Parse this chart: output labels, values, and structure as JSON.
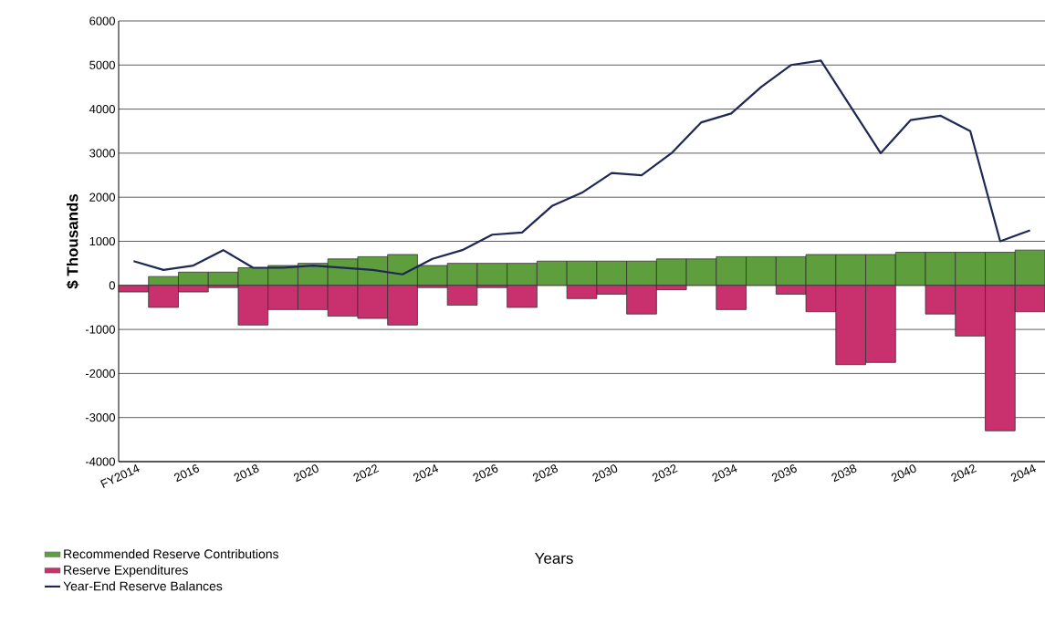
{
  "chart_data": {
    "type": "bar",
    "stacked": true,
    "xlabel": "Years",
    "ylabel": "$ Thousands",
    "categories": [
      "FY2014",
      null,
      "2016",
      null,
      "2018",
      null,
      "2020",
      null,
      "2022",
      null,
      "2024",
      null,
      "2026",
      null,
      "2028",
      null,
      "2030",
      null,
      "2032",
      null,
      "2034",
      null,
      "2036",
      null,
      "2038",
      null,
      "2040",
      null,
      "2042",
      null,
      "2044"
    ],
    "series": [
      {
        "name": "Recommended Reserve Contributions",
        "color": "#5e9e3c",
        "values": [
          0,
          200,
          300,
          300,
          400,
          450,
          500,
          600,
          650,
          700,
          450,
          500,
          500,
          500,
          550,
          550,
          550,
          550,
          600,
          600,
          650,
          650,
          650,
          700,
          700,
          700,
          750,
          750,
          750,
          750,
          800
        ]
      },
      {
        "name": "Reserve Expenditures",
        "color": "#c8306e",
        "values": [
          -150,
          -500,
          -150,
          -50,
          -900,
          -550,
          -550,
          -700,
          -750,
          -900,
          -50,
          -450,
          -50,
          -500,
          0,
          -300,
          -200,
          -650,
          -100,
          0,
          -550,
          0,
          -200,
          -600,
          -1800,
          -1750,
          0,
          -650,
          -1150,
          -3300,
          -600
        ]
      },
      {
        "name": "Year-End Reserve Balances",
        "type": "line",
        "color": "#1f2855",
        "values": [
          550,
          350,
          450,
          800,
          400,
          400,
          450,
          400,
          350,
          250,
          600,
          800,
          1150,
          1200,
          1800,
          2100,
          2550,
          2500,
          3000,
          3700,
          3900,
          4500,
          5000,
          5100,
          4050,
          3000,
          3750,
          3850,
          3500,
          1000,
          1250
        ]
      }
    ],
    "ylim": [
      -4000,
      6000
    ],
    "yticks": [
      -4000,
      -3000,
      -2000,
      -1000,
      0,
      1000,
      2000,
      3000,
      4000,
      5000,
      6000
    ],
    "grid": "y",
    "legend": "bottom left"
  }
}
